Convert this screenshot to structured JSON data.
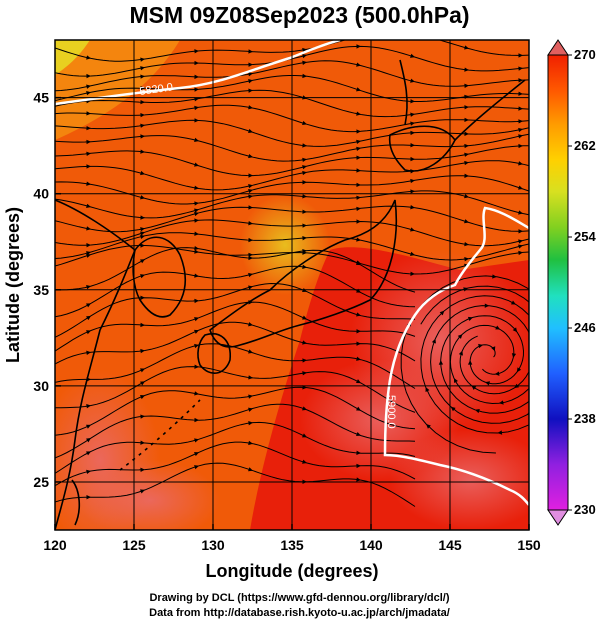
{
  "title": "MSM 09Z08Sep2023 (500.0hPa)",
  "map": {
    "lon_range": [
      120,
      150
    ],
    "lat_range": [
      22.5,
      48
    ],
    "lon_ticks": [
      "120",
      "125",
      "130",
      "135",
      "140",
      "145",
      "150"
    ],
    "lat_ticks": [
      "25",
      "30",
      "35",
      "40",
      "45"
    ],
    "xlabel": "Longitude (degrees)",
    "ylabel": "Latitude  (degrees)",
    "contour_labels": [
      "5820.0",
      "5900.0"
    ],
    "field_colors": {
      "warm_orange": "#f05a08",
      "red": "#e8200a",
      "pink": "#ea5e5e",
      "yellow": "#e8d020",
      "contour": "#ffffff",
      "land_outline": "#000000",
      "stream": "#000000"
    }
  },
  "colorbar": {
    "labels": [
      "270",
      "262",
      "254",
      "246",
      "238",
      "230"
    ],
    "min": 230,
    "max": 270,
    "colors": [
      "#e020e0",
      "#9020e0",
      "#1010c0",
      "#2060ff",
      "#20c0ff",
      "#20e0c0",
      "#20c040",
      "#80d020",
      "#d8e020",
      "#ffd000",
      "#ff9a00",
      "#ff5a00",
      "#f02000",
      "#e06060"
    ]
  },
  "credits": {
    "line1": "Drawing by DCL (https://www.gfd-dennou.org/library/dcl/)",
    "line2": "Data from http://database.rish.kyoto-u.ac.jp/arch/jmadata/"
  }
}
